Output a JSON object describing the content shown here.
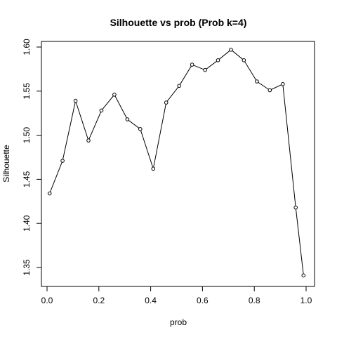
{
  "chart_data": {
    "type": "line",
    "title": "Silhouette vs prob (Prob k=4)",
    "xlabel": "prob",
    "ylabel": "Silhouette",
    "xlim": [
      0.0,
      1.0
    ],
    "ylim": [
      1.33,
      1.61
    ],
    "x_ticks": [
      "0.0",
      "0.2",
      "0.4",
      "0.6",
      "0.8",
      "1.0"
    ],
    "y_ticks": [
      "1.35",
      "1.40",
      "1.45",
      "1.50",
      "1.55",
      "1.60"
    ],
    "grid": false,
    "markers": "open-circle",
    "series": [
      {
        "x": [
          0.01,
          0.06,
          0.11,
          0.16,
          0.21,
          0.26,
          0.31,
          0.36,
          0.41,
          0.46,
          0.51,
          0.56,
          0.61,
          0.66,
          0.71,
          0.76,
          0.81,
          0.86,
          0.91,
          0.96,
          0.99
        ],
        "values": [
          1.434,
          1.471,
          1.539,
          1.494,
          1.528,
          1.546,
          1.518,
          1.507,
          1.462,
          1.537,
          1.556,
          1.58,
          1.574,
          1.585,
          1.597,
          1.585,
          1.561,
          1.551,
          1.558,
          1.418,
          1.341
        ]
      }
    ]
  }
}
